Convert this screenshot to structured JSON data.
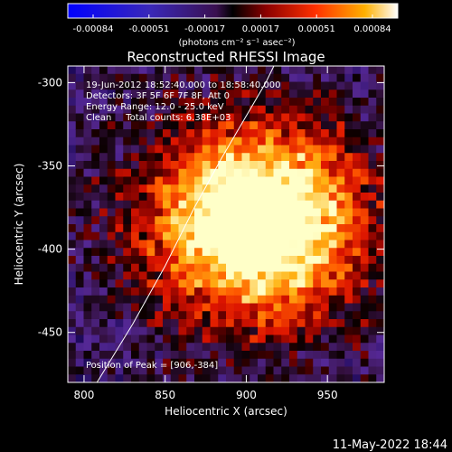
{
  "chart_data": {
    "type": "heatmap",
    "title": "Reconstructed RHESSI Image",
    "xlabel": "Heliocentric X (arcsec)",
    "ylabel": "Heliocentric Y (arcsec)",
    "xlim": [
      790,
      985
    ],
    "ylim": [
      -480,
      -290
    ],
    "xticks": [
      800,
      850,
      900,
      950
    ],
    "yticks": [
      -300,
      -350,
      -400,
      -450
    ],
    "colorbar": {
      "ticks": [
        "-0.00084",
        "-0.00051",
        "-0.00017",
        "0.00017",
        "0.00051",
        "0.00084"
      ],
      "range": [
        -0.00084,
        0.00084
      ],
      "units": "(photons cm⁻² s⁻¹ asec⁻²)"
    },
    "annotations": [
      "19-Jun-2012 18:52:40.000 to 18:58:40.000",
      "Detectors: 3F 5F 6F 7F 8F, Att 0",
      "Energy Range: 12.0 - 25.0 keV",
      "Clean     Total counts: 6.38E+03"
    ],
    "peak_label": "Position of Peak = [906,-384]",
    "peak": [
      906,
      -384
    ],
    "limb_curve": {
      "x": [
        808,
        830,
        850,
        868,
        885,
        900,
        912,
        922,
        930
      ],
      "y": [
        -480,
        -445,
        -410,
        -375,
        -345,
        -320,
        -300,
        -280,
        -265
      ]
    }
  },
  "footer": {
    "timestamp": "11-May-2022 18:44"
  },
  "colors": {
    "background": "#000000",
    "text": "#ffffff"
  }
}
